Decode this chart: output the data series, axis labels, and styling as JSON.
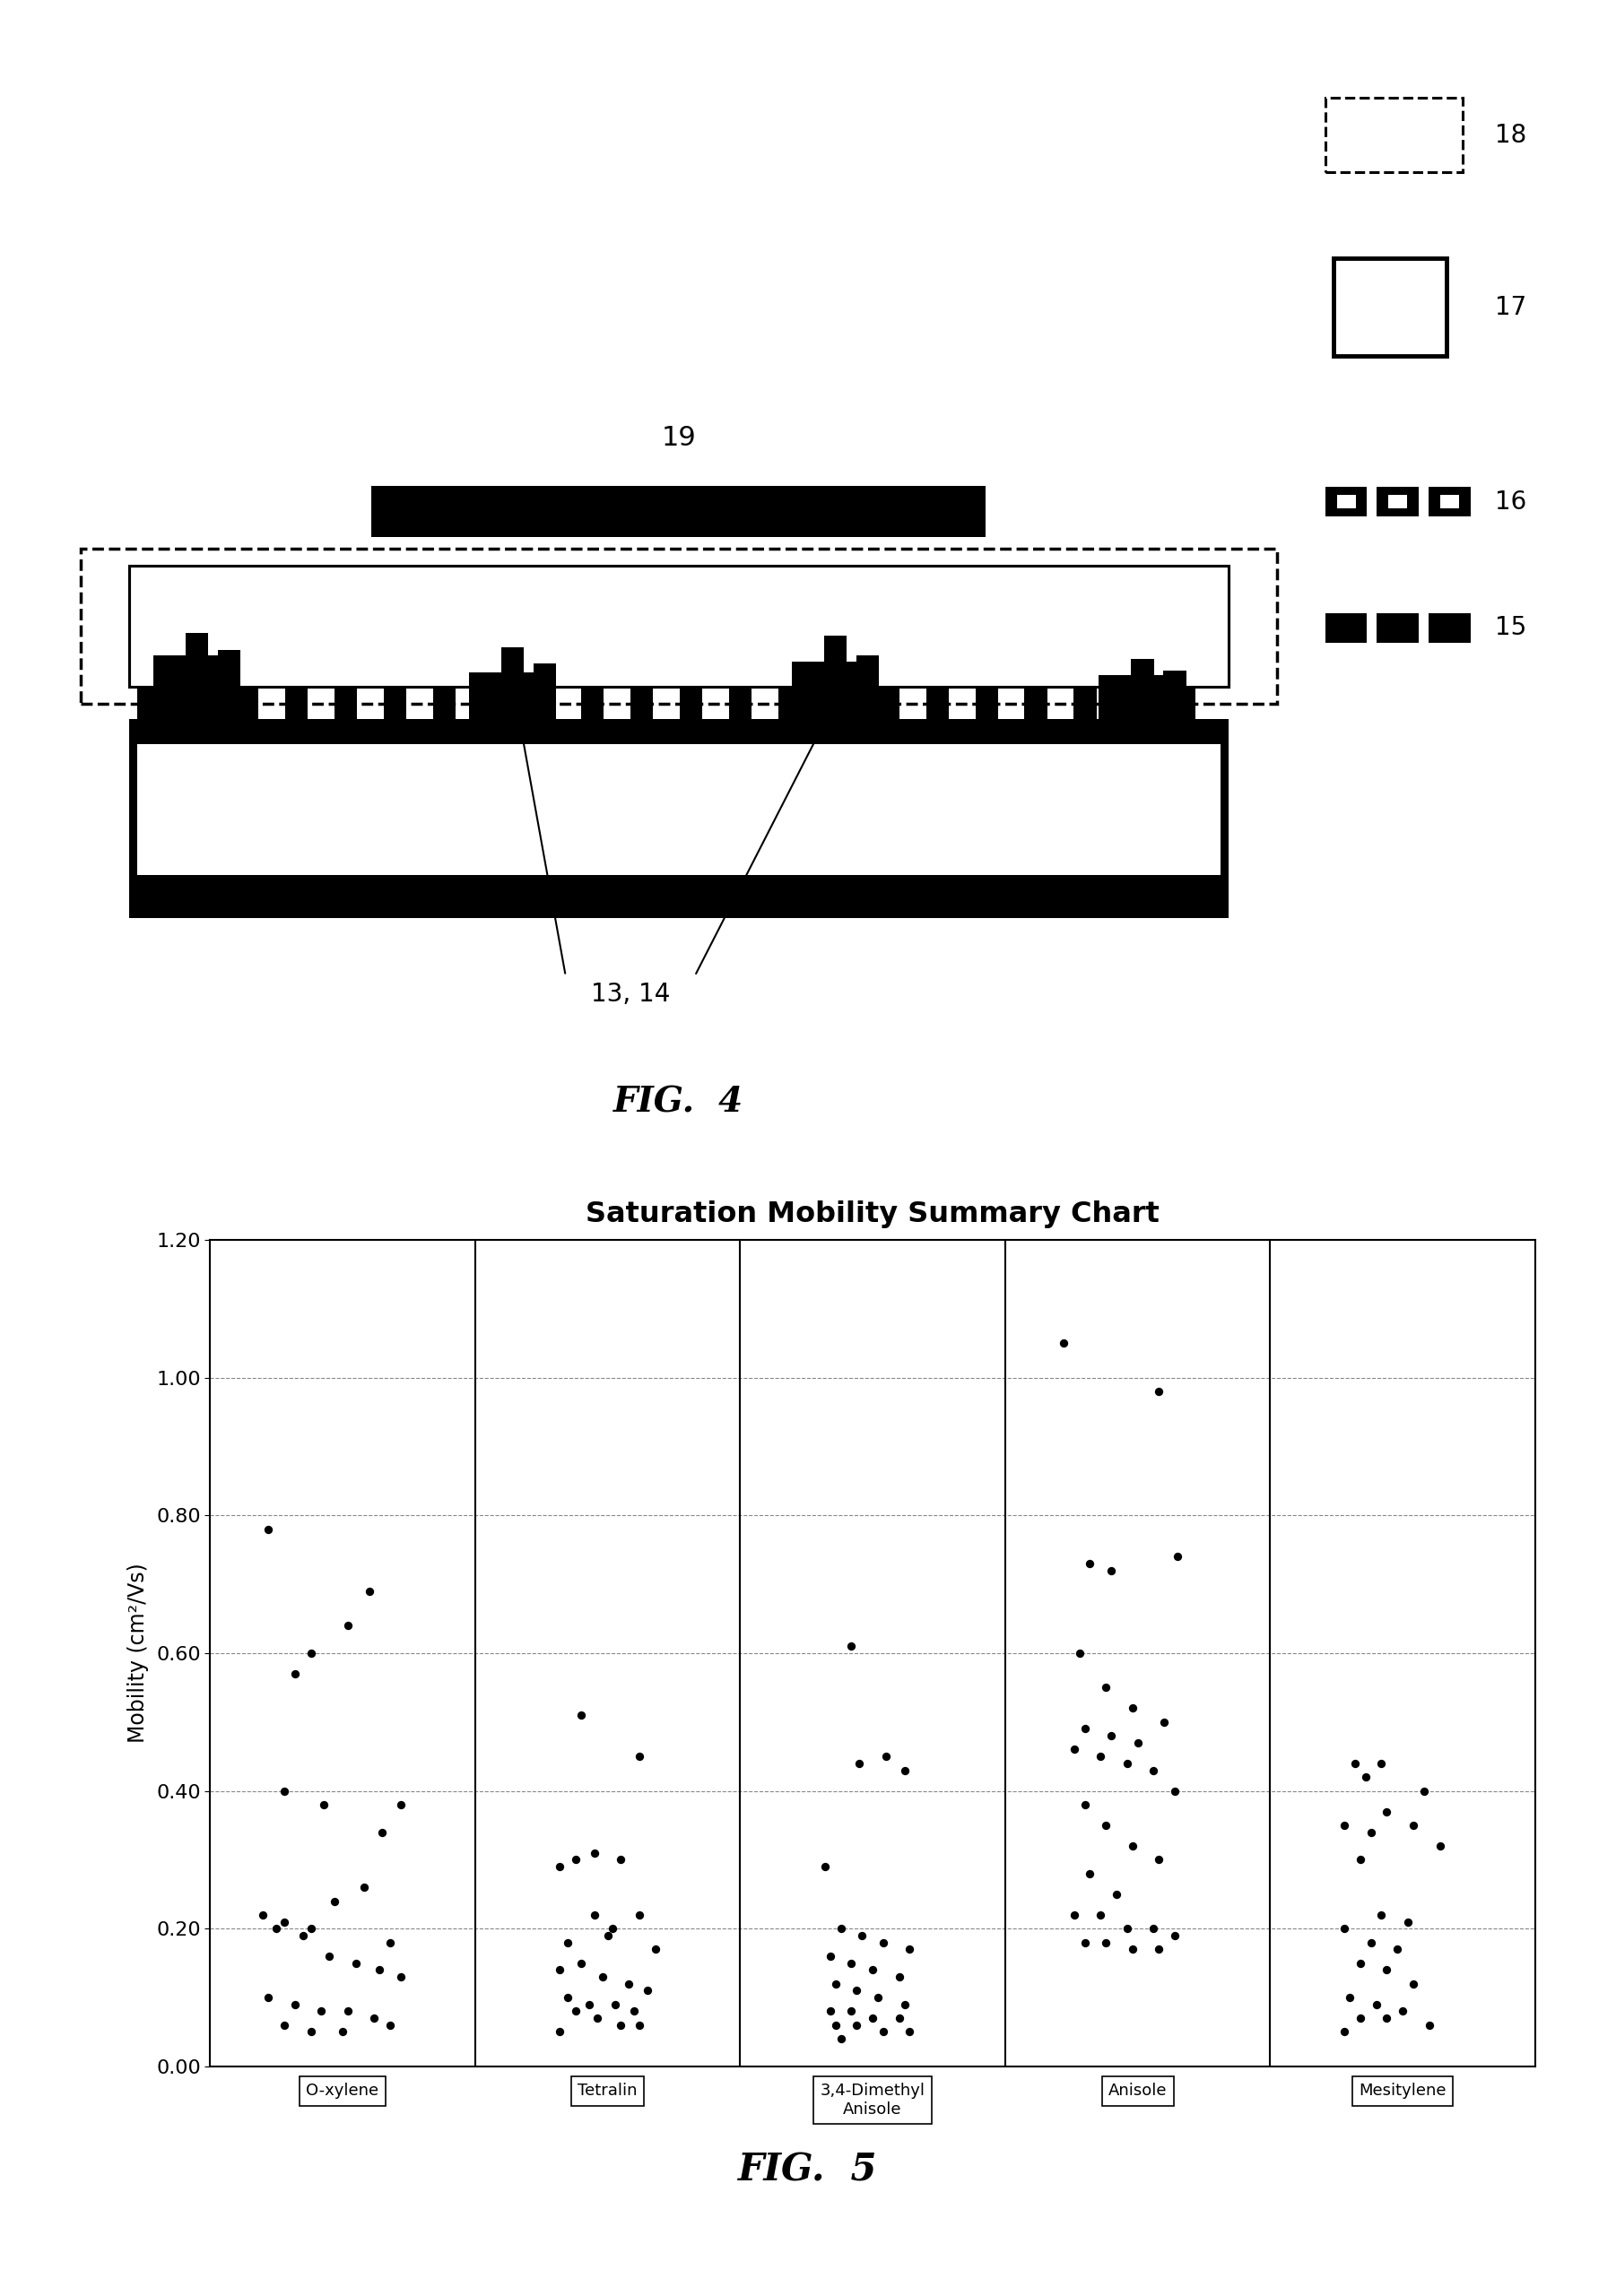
{
  "fig4_label": "FIG.  4",
  "fig5_label": "FIG.  5",
  "chart_title": "Saturation Mobility Summary Chart",
  "ylabel": "Mobility (cm²/Vs)",
  "ylim": [
    0.0,
    1.2
  ],
  "yticks": [
    0.0,
    0.2,
    0.4,
    0.6,
    0.8,
    1.0,
    1.2
  ],
  "categories": [
    "O-xylene",
    "Tetralin",
    "3,4-Dimethyl\nAnisole",
    "Anisole",
    "Mesitylene"
  ],
  "scatter_data": {
    "O-xylene": [
      0.78,
      0.4,
      0.57,
      0.6,
      0.38,
      0.64,
      0.69,
      0.34,
      0.38,
      0.22,
      0.21,
      0.2,
      0.24,
      0.26,
      0.18,
      0.2,
      0.19,
      0.16,
      0.15,
      0.14,
      0.13,
      0.1,
      0.09,
      0.08,
      0.08,
      0.07,
      0.06,
      0.05,
      0.05,
      0.06
    ],
    "Tetralin": [
      0.51,
      0.3,
      0.31,
      0.45,
      0.29,
      0.3,
      0.22,
      0.2,
      0.18,
      0.19,
      0.22,
      0.17,
      0.14,
      0.15,
      0.13,
      0.12,
      0.11,
      0.1,
      0.09,
      0.09,
      0.08,
      0.08,
      0.07,
      0.06,
      0.06,
      0.05
    ],
    "3,4-Dimethyl\nAnisole": [
      0.61,
      0.45,
      0.44,
      0.43,
      0.29,
      0.2,
      0.19,
      0.18,
      0.17,
      0.16,
      0.15,
      0.14,
      0.13,
      0.12,
      0.11,
      0.1,
      0.09,
      0.08,
      0.08,
      0.07,
      0.07,
      0.06,
      0.06,
      0.05,
      0.05,
      0.04
    ],
    "Anisole": [
      1.05,
      0.98,
      0.73,
      0.72,
      0.74,
      0.6,
      0.55,
      0.52,
      0.5,
      0.49,
      0.48,
      0.47,
      0.46,
      0.45,
      0.44,
      0.43,
      0.4,
      0.38,
      0.35,
      0.32,
      0.3,
      0.28,
      0.25,
      0.22,
      0.22,
      0.2,
      0.2,
      0.19,
      0.18,
      0.18,
      0.17,
      0.17
    ],
    "Mesitylene": [
      0.44,
      0.44,
      0.42,
      0.4,
      0.37,
      0.35,
      0.35,
      0.34,
      0.32,
      0.3,
      0.22,
      0.21,
      0.2,
      0.18,
      0.17,
      0.15,
      0.14,
      0.12,
      0.1,
      0.09,
      0.08,
      0.07,
      0.07,
      0.06,
      0.05
    ]
  },
  "scatter_x_jitter": {
    "O-xylene": [
      0.72,
      0.78,
      0.82,
      0.88,
      0.93,
      1.02,
      1.1,
      1.15,
      1.22,
      0.7,
      0.78,
      0.88,
      0.97,
      1.08,
      1.18,
      0.75,
      0.85,
      0.95,
      1.05,
      1.14,
      1.22,
      0.72,
      0.82,
      0.92,
      1.02,
      1.12,
      0.78,
      0.88,
      1.0,
      1.18
    ],
    "Tetralin": [
      1.9,
      2.05,
      1.95,
      2.12,
      1.82,
      1.88,
      1.95,
      2.02,
      1.85,
      2.0,
      2.12,
      2.18,
      1.82,
      1.9,
      1.98,
      2.08,
      2.15,
      1.85,
      1.93,
      2.03,
      2.1,
      1.88,
      1.96,
      2.05,
      2.12,
      1.82
    ],
    "3,4-Dimethyl\nAnisole": [
      2.92,
      3.05,
      2.95,
      3.12,
      2.82,
      2.88,
      2.96,
      3.04,
      3.14,
      2.84,
      2.92,
      3.0,
      3.1,
      2.86,
      2.94,
      3.02,
      3.12,
      2.84,
      2.92,
      3.0,
      3.1,
      2.86,
      2.94,
      3.04,
      3.14,
      2.88
    ],
    "Anisole": [
      3.72,
      4.08,
      3.82,
      3.9,
      4.15,
      3.78,
      3.88,
      3.98,
      4.1,
      3.8,
      3.9,
      4.0,
      3.76,
      3.86,
      3.96,
      4.06,
      4.14,
      3.8,
      3.88,
      3.98,
      4.08,
      3.82,
      3.92,
      3.76,
      3.86,
      3.96,
      4.06,
      4.14,
      3.8,
      3.88,
      3.98,
      4.08
    ],
    "Mesitylene": [
      4.82,
      4.92,
      4.86,
      5.08,
      4.94,
      4.78,
      5.04,
      4.88,
      5.14,
      4.84,
      4.92,
      5.02,
      4.78,
      4.88,
      4.98,
      4.84,
      4.94,
      5.04,
      4.8,
      4.9,
      5.0,
      4.84,
      4.94,
      5.1,
      4.78
    ]
  },
  "background_color": "#ffffff",
  "dot_color": "#000000",
  "grid_color": "#888888"
}
